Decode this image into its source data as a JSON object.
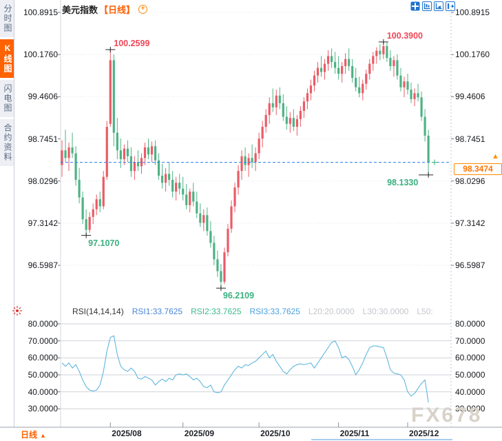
{
  "window": {
    "watermark": "FX678"
  },
  "sidebar": {
    "items": [
      {
        "label": "分时图",
        "active": false
      },
      {
        "label": "K线图",
        "active": true
      },
      {
        "label": "闪电图",
        "active": false
      },
      {
        "label": "合约资料",
        "active": false
      }
    ]
  },
  "header": {
    "title": "美元指数",
    "period": "【日线】",
    "add_button": "+"
  },
  "toolbar": {
    "icons": [
      "pan",
      "fit-axis",
      "shift-axis",
      "page-forward"
    ]
  },
  "price_scale": {
    "labels": [
      "100.8915",
      "100.1760",
      "99.4606",
      "98.7451",
      "98.0296",
      "97.3142",
      "96.5987"
    ],
    "values": [
      100.8915,
      100.176,
      99.4606,
      98.7451,
      98.0296,
      97.3142,
      96.5987
    ]
  },
  "current_price": {
    "value": "98.3474",
    "numeric": 98.3474,
    "arrow": "▲"
  },
  "rsi_panel": {
    "header": {
      "name": "RSI(14,14,14)",
      "rsi1": "RSI1:33.7625",
      "rsi2": "RSI2:33.7625",
      "rsi3": "RSI3:33.7625",
      "l20": "L20:20.0000",
      "l30": "L30:30.0000",
      "l50": "L50:"
    },
    "axis_labels": [
      "80.0000",
      "70.0000",
      "60.0000",
      "50.0000",
      "40.0000",
      "30.0000"
    ],
    "axis_values": [
      80,
      70,
      60,
      50,
      40,
      30
    ]
  },
  "x_axis": {
    "labels": [
      "2025/08",
      "2025/09",
      "2025/10",
      "2025/11",
      "2025/12"
    ],
    "tick_indices": [
      14,
      35,
      57,
      80,
      100
    ]
  },
  "footer": {
    "period_selector": "日线",
    "arrow": "▲"
  },
  "colors": {
    "up": "#ea5b66",
    "down": "#4eb284",
    "price_line": "#2f80ed",
    "accent": "#ff6200",
    "rsi_line": "#5fb6dd",
    "ann_high": "#ee4757",
    "ann_low": "#3bb080"
  },
  "chart_data": {
    "type": "candlestick+line",
    "title": "美元指数 日线 (US Dollar Index, daily)",
    "price_ylim": [
      96.2109,
      100.8915
    ],
    "price_axis_ticks": [
      100.8915,
      100.176,
      99.4606,
      98.7451,
      98.0296,
      97.3142,
      96.5987
    ],
    "x_tick_labels": [
      "2025/08",
      "2025/09",
      "2025/10",
      "2025/11",
      "2025/12"
    ],
    "last_close": 98.3474,
    "candles_ohlc": [
      [
        98.3,
        98.72,
        98.1,
        98.55
      ],
      [
        98.55,
        98.9,
        98.35,
        98.42
      ],
      [
        98.42,
        98.68,
        98.2,
        98.6
      ],
      [
        98.6,
        98.85,
        98.42,
        98.5
      ],
      [
        98.5,
        98.62,
        97.95,
        98.05
      ],
      [
        98.05,
        98.25,
        97.65,
        97.75
      ],
      [
        97.75,
        97.85,
        97.3,
        97.38
      ],
      [
        97.38,
        97.55,
        97.107,
        97.2
      ],
      [
        97.2,
        97.5,
        97.15,
        97.42
      ],
      [
        97.42,
        97.65,
        97.3,
        97.55
      ],
      [
        97.55,
        97.8,
        97.45,
        97.72
      ],
      [
        97.72,
        97.85,
        97.5,
        97.6
      ],
      [
        97.6,
        98.2,
        97.55,
        98.1
      ],
      [
        98.1,
        99.05,
        98.05,
        98.95
      ],
      [
        99.0,
        100.2599,
        98.95,
        100.08
      ],
      [
        100.08,
        100.18,
        98.62,
        98.85
      ],
      [
        98.85,
        99.1,
        98.4,
        98.55
      ],
      [
        98.55,
        98.75,
        98.25,
        98.4
      ],
      [
        98.4,
        98.65,
        98.3,
        98.58
      ],
      [
        98.58,
        98.72,
        98.35,
        98.45
      ],
      [
        98.45,
        98.6,
        98.1,
        98.2
      ],
      [
        98.2,
        98.45,
        98.05,
        98.35
      ],
      [
        98.35,
        98.55,
        98.2,
        98.28
      ],
      [
        98.28,
        98.5,
        98.15,
        98.42
      ],
      [
        98.42,
        98.68,
        98.3,
        98.6
      ],
      [
        98.6,
        98.75,
        98.4,
        98.48
      ],
      [
        98.48,
        98.7,
        98.35,
        98.62
      ],
      [
        98.62,
        98.72,
        98.3,
        98.38
      ],
      [
        98.38,
        98.5,
        98.05,
        98.12
      ],
      [
        98.12,
        98.32,
        97.9,
        98.0
      ],
      [
        98.0,
        98.25,
        97.85,
        98.15
      ],
      [
        98.15,
        98.35,
        97.95,
        98.05
      ],
      [
        98.05,
        98.2,
        97.75,
        97.85
      ],
      [
        97.85,
        98.1,
        97.7,
        98.0
      ],
      [
        98.0,
        98.15,
        97.8,
        97.9
      ],
      [
        97.9,
        98.1,
        97.7,
        97.8
      ],
      [
        97.8,
        97.98,
        97.55,
        97.62
      ],
      [
        97.62,
        97.9,
        97.5,
        97.85
      ],
      [
        97.85,
        98.0,
        97.6,
        97.68
      ],
      [
        97.68,
        97.85,
        97.4,
        97.48
      ],
      [
        97.48,
        97.65,
        97.25,
        97.32
      ],
      [
        97.32,
        97.55,
        97.18,
        97.45
      ],
      [
        97.45,
        97.58,
        97.1,
        97.18
      ],
      [
        97.18,
        97.35,
        96.9,
        96.98
      ],
      [
        96.98,
        97.1,
        96.6,
        96.7
      ],
      [
        96.7,
        96.85,
        96.4,
        96.5
      ],
      [
        96.5,
        96.62,
        96.2109,
        96.32
      ],
      [
        96.32,
        96.9,
        96.28,
        96.82
      ],
      [
        96.82,
        97.3,
        96.75,
        97.22
      ],
      [
        97.22,
        97.7,
        97.15,
        97.6
      ],
      [
        97.6,
        98.0,
        97.5,
        97.92
      ],
      [
        97.92,
        98.3,
        97.8,
        98.2
      ],
      [
        98.2,
        98.55,
        98.05,
        98.45
      ],
      [
        98.45,
        98.6,
        98.2,
        98.3
      ],
      [
        98.3,
        98.5,
        98.1,
        98.42
      ],
      [
        98.42,
        98.65,
        98.25,
        98.35
      ],
      [
        98.35,
        98.6,
        98.2,
        98.5
      ],
      [
        98.5,
        98.85,
        98.4,
        98.75
      ],
      [
        98.75,
        99.05,
        98.6,
        98.95
      ],
      [
        98.95,
        99.25,
        98.85,
        99.15
      ],
      [
        99.15,
        99.45,
        99.0,
        99.35
      ],
      [
        99.35,
        99.6,
        99.2,
        99.28
      ],
      [
        99.28,
        99.58,
        99.15,
        99.48
      ],
      [
        99.48,
        99.62,
        99.25,
        99.35
      ],
      [
        99.35,
        99.5,
        99.05,
        99.12
      ],
      [
        99.12,
        99.3,
        98.9,
        99.0
      ],
      [
        99.0,
        99.2,
        98.85,
        99.1
      ],
      [
        99.1,
        99.25,
        98.88,
        98.95
      ],
      [
        98.95,
        99.15,
        98.8,
        99.08
      ],
      [
        99.08,
        99.3,
        98.95,
        99.22
      ],
      [
        99.22,
        99.45,
        99.1,
        99.38
      ],
      [
        99.38,
        99.6,
        99.25,
        99.52
      ],
      [
        99.52,
        99.75,
        99.4,
        99.65
      ],
      [
        99.65,
        99.9,
        99.55,
        99.82
      ],
      [
        99.82,
        100.05,
        99.7,
        99.95
      ],
      [
        99.95,
        100.15,
        99.8,
        99.88
      ],
      [
        99.88,
        100.1,
        99.75,
        100.02
      ],
      [
        100.02,
        100.25,
        99.9,
        100.15
      ],
      [
        100.15,
        100.28,
        99.95,
        100.05
      ],
      [
        100.05,
        100.22,
        99.85,
        99.95
      ],
      [
        99.95,
        100.15,
        99.75,
        99.85
      ],
      [
        99.85,
        100.05,
        99.7,
        99.98
      ],
      [
        99.98,
        100.2,
        99.85,
        100.1
      ],
      [
        100.1,
        100.28,
        99.9,
        99.98
      ],
      [
        99.98,
        100.1,
        99.7,
        99.78
      ],
      [
        99.78,
        99.95,
        99.55,
        99.62
      ],
      [
        99.62,
        99.8,
        99.45,
        99.52
      ],
      [
        99.52,
        99.75,
        99.4,
        99.68
      ],
      [
        99.68,
        99.92,
        99.58,
        99.85
      ],
      [
        99.85,
        100.1,
        99.75,
        100.02
      ],
      [
        100.02,
        100.22,
        99.9,
        100.15
      ],
      [
        100.15,
        100.3,
        100.02,
        100.24
      ],
      [
        100.24,
        100.35,
        100.08,
        100.18
      ],
      [
        100.18,
        100.39,
        100.1,
        100.32
      ],
      [
        100.32,
        100.38,
        100.05,
        100.12
      ],
      [
        100.12,
        100.25,
        99.9,
        99.98
      ],
      [
        99.98,
        100.15,
        99.8,
        100.08
      ],
      [
        100.08,
        100.18,
        99.75,
        99.82
      ],
      [
        99.82,
        99.95,
        99.55,
        99.62
      ],
      [
        99.62,
        99.8,
        99.45,
        99.72
      ],
      [
        99.72,
        99.85,
        99.5,
        99.58
      ],
      [
        99.58,
        99.7,
        99.35,
        99.42
      ],
      [
        99.42,
        99.6,
        99.3,
        99.52
      ],
      [
        99.52,
        99.68,
        99.38,
        99.45
      ],
      [
        99.45,
        99.55,
        99.05,
        99.12
      ],
      [
        99.12,
        99.25,
        98.7,
        98.8
      ],
      [
        98.8,
        98.9,
        98.133,
        98.3474
      ]
    ],
    "rsi_values": [
      57,
      55,
      57,
      54,
      56,
      52,
      47,
      43,
      41,
      40.5,
      41,
      44,
      52,
      64,
      72,
      73,
      62,
      55,
      53,
      52,
      54,
      52,
      48,
      47.5,
      49,
      48,
      47,
      44,
      46,
      47.5,
      46,
      48,
      47,
      50,
      50.5,
      50,
      50.5,
      49,
      47,
      48,
      46,
      43,
      42.5,
      44,
      40,
      39.5,
      40,
      44,
      47,
      50,
      53,
      55,
      54,
      56,
      55.5,
      57,
      58,
      60,
      62,
      64,
      60,
      62,
      58,
      55,
      52,
      50.5,
      53,
      55,
      56,
      56.5,
      56,
      56.5,
      57,
      54,
      57,
      60,
      63,
      66,
      69,
      70,
      66,
      60,
      61,
      59,
      55,
      50,
      53,
      57,
      62,
      66,
      67,
      67,
      66.5,
      66,
      60,
      53,
      51,
      50.5,
      50,
      47,
      40,
      37.5,
      39,
      42,
      45,
      47,
      33.76
    ],
    "rsi_ylim": [
      30,
      80
    ],
    "annotations": [
      {
        "text": "100.2599",
        "index": 14,
        "price": 100.2599,
        "type": "high",
        "placement": "right-top"
      },
      {
        "text": "97.1070",
        "index": 7,
        "price": 97.107,
        "type": "low",
        "placement": "below-right"
      },
      {
        "text": "96.2109",
        "index": 46,
        "price": 96.2109,
        "type": "low",
        "placement": "below-right"
      },
      {
        "text": "100.3900",
        "index": 93,
        "price": 100.39,
        "type": "high",
        "placement": "right-top"
      },
      {
        "text": "98.1330",
        "index": 106,
        "price": 98.133,
        "type": "low",
        "placement": "left-below"
      }
    ]
  }
}
